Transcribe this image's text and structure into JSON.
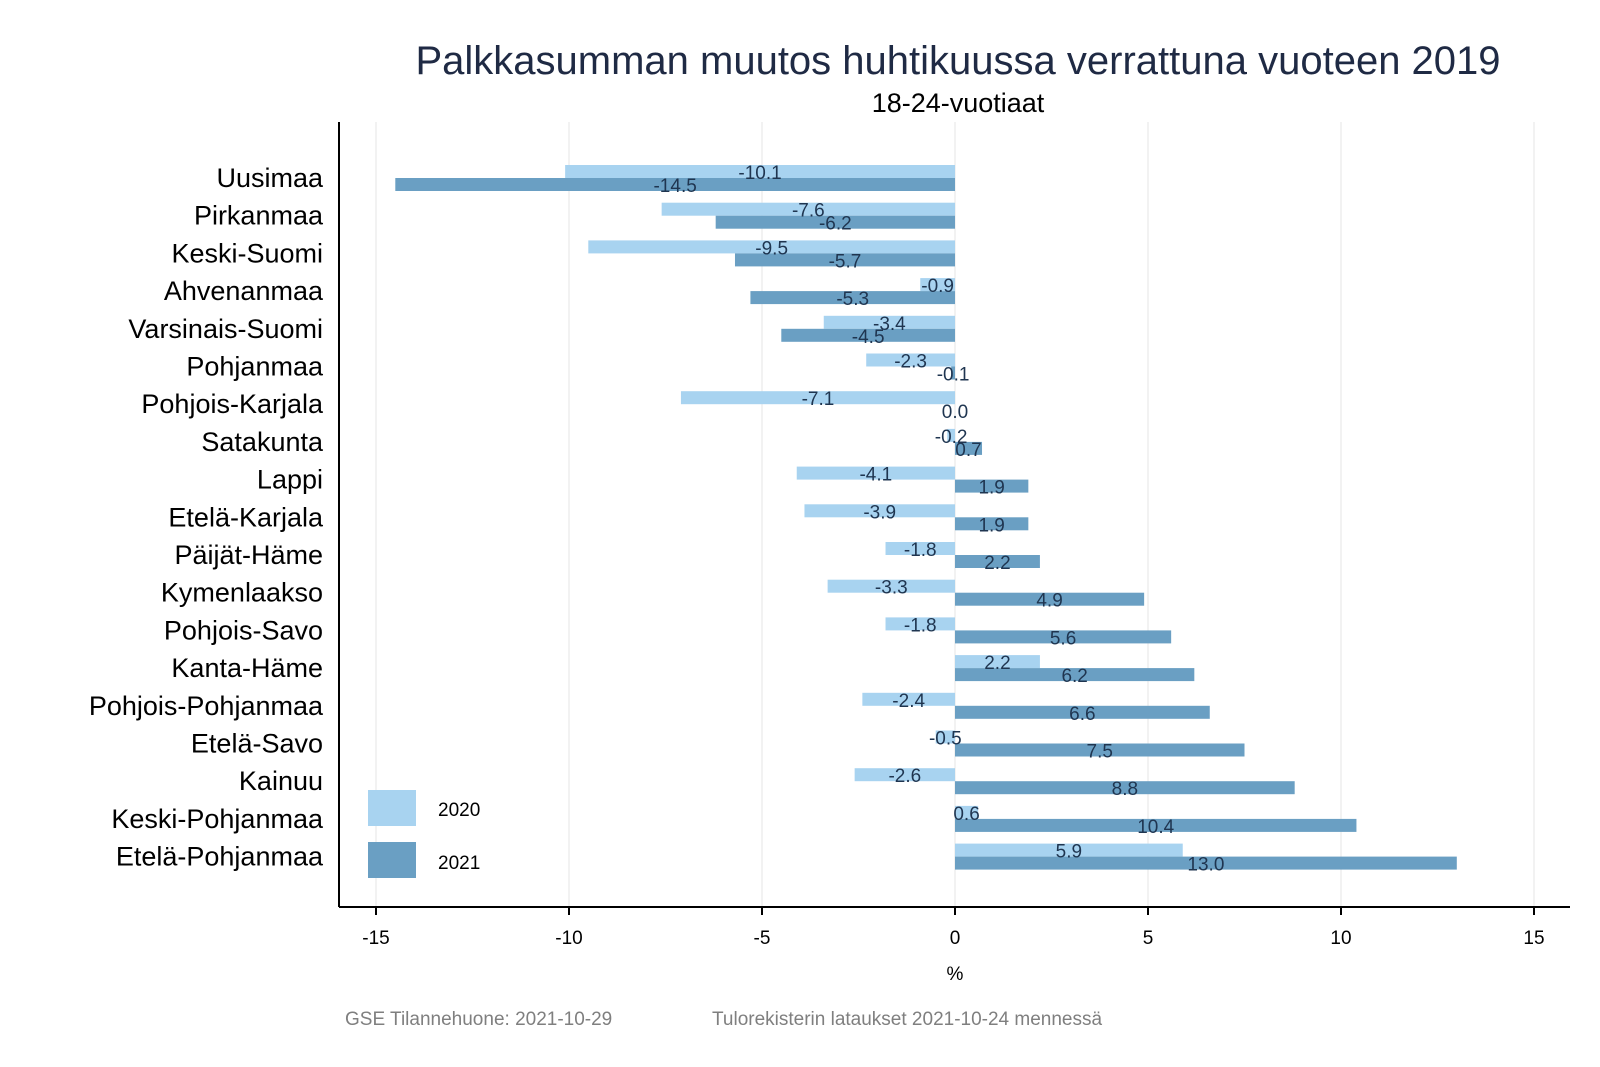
{
  "chart_data": {
    "type": "bar",
    "orientation": "horizontal",
    "title": "Palkkasumman muutos huhtikuussa verrattuna vuoteen 2019",
    "subtitle": "18-24-vuotiaat",
    "xlabel": "%",
    "ylabel": "",
    "xlim": [
      -16,
      16
    ],
    "xticks": [
      -15,
      -10,
      -5,
      0,
      5,
      10,
      15
    ],
    "xtick_labels": [
      "-15",
      "-10",
      "-5",
      "0",
      "5",
      "10",
      "15"
    ],
    "grid": "vertical",
    "legend_position": "bottom-left",
    "categories": [
      "Uusimaa",
      "Pirkanmaa",
      "Keski-Suomi",
      "Ahvenanmaa",
      "Varsinais-Suomi",
      "Pohjanmaa",
      "Pohjois-Karjala",
      "Satakunta",
      "Lappi",
      "Etelä-Karjala",
      "Päijät-Häme",
      "Kymenlaakso",
      "Pohjois-Savo",
      "Kanta-Häme",
      "Pohjois-Pohjanmaa",
      "Etelä-Savo",
      "Kainuu",
      "Keski-Pohjanmaa",
      "Etelä-Pohjanmaa"
    ],
    "series": [
      {
        "name": "2020",
        "color": "#a8d3f0",
        "values": [
          -10.1,
          -7.6,
          -9.5,
          -0.9,
          -3.4,
          -2.3,
          -7.1,
          -0.2,
          -4.1,
          -3.9,
          -1.8,
          -3.3,
          -1.8,
          2.2,
          -2.4,
          -0.5,
          -2.6,
          0.6,
          5.9
        ],
        "labels": [
          "-10.1",
          "-7.6",
          "-9.5",
          "-0.9",
          "-3.4",
          "-2.3",
          "-7.1",
          "-0.2",
          "-4.1",
          "-3.9",
          "-1.8",
          "-3.3",
          "-1.8",
          "2.2",
          "-2.4",
          "-0.5",
          "-2.6",
          "0.6",
          "5.9"
        ]
      },
      {
        "name": "2021",
        "color": "#6a9fc3",
        "values": [
          -14.5,
          -6.2,
          -5.7,
          -5.3,
          -4.5,
          -0.1,
          0.0,
          0.7,
          1.9,
          1.9,
          2.2,
          4.9,
          5.6,
          6.2,
          6.6,
          7.5,
          8.8,
          10.4,
          13.0
        ],
        "labels": [
          "-14.5",
          "-6.2",
          "-5.7",
          "-5.3",
          "-4.5",
          "-0.1",
          "0.0",
          "0.7",
          "1.9",
          "1.9",
          "2.2",
          "4.9",
          "5.6",
          "6.2",
          "6.6",
          "7.5",
          "8.8",
          "10.4",
          "13.0"
        ]
      }
    ]
  },
  "footer": {
    "source": "GSE Tilannehuone: 2021-10-29",
    "note": "Tulorekisterin lataukset 2021-10-24 mennessä"
  }
}
